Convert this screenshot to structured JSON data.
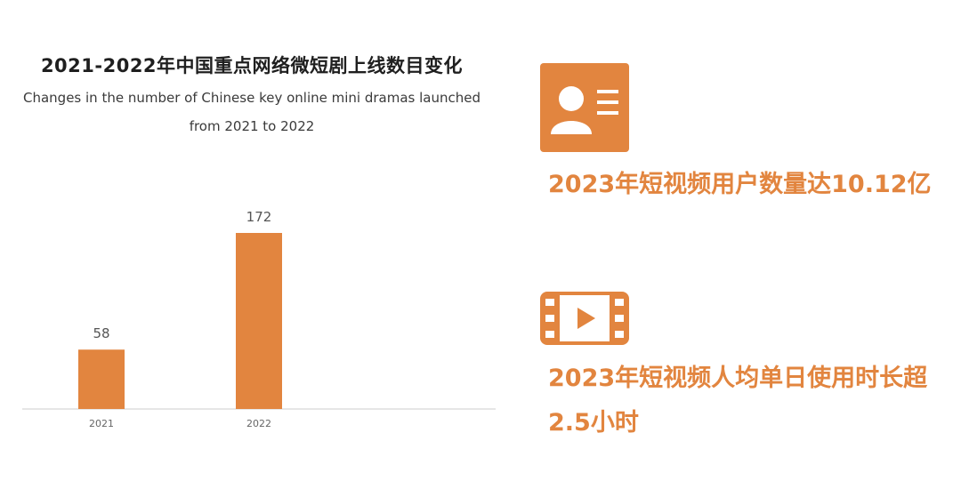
{
  "chart_data": {
    "type": "bar",
    "title": "2021-2022年中国重点网络微短剧上线数目变化",
    "subtitle_line1": "Changes in the number of Chinese key online mini dramas launched",
    "subtitle_line2": "from 2021 to 2022",
    "categories": [
      "2021",
      "2022"
    ],
    "values": [
      58,
      172
    ],
    "bar_color": "#e2853f",
    "grid": false,
    "legend": "none"
  },
  "stats": [
    {
      "icon": "user-profile-card-icon",
      "text": "2023年短视频用户数量达10.12亿"
    },
    {
      "icon": "video-film-play-icon",
      "text_line1": "2023年短视频人均单日使用时长超",
      "text_line2": "2.5小时"
    }
  ],
  "colors": {
    "accent": "#e2853f",
    "baseline": "#dddddd"
  }
}
